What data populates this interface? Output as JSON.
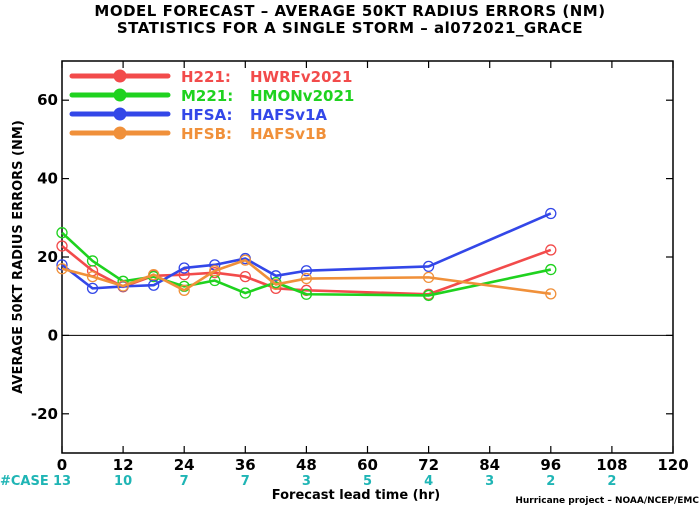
{
  "title_line1": "MODEL FORECAST – AVERAGE 50KT RADIUS ERRORS (NM)",
  "title_line2": "STATISTICS FOR A SINGLE STORM – al072021_GRACE",
  "credit": "Hurricane project – NOAA/NCEP/EMC",
  "case_label": "#CASE",
  "chart_data": {
    "type": "line",
    "xlabel": "Forecast lead time (hr)",
    "ylabel": "AVERAGE 50KT RADIUS ERRORS (NM)",
    "xlim": [
      0,
      120
    ],
    "ylim": [
      -30,
      70
    ],
    "x_ticks": [
      0,
      12,
      24,
      36,
      48,
      60,
      72,
      84,
      96,
      108,
      120
    ],
    "y_ticks": [
      -20,
      0,
      20,
      40,
      60
    ],
    "zero_line": true,
    "legend_position": "top-left",
    "cases": [
      {
        "x": 0,
        "n": "13"
      },
      {
        "x": 12,
        "n": "10"
      },
      {
        "x": 24,
        "n": "7"
      },
      {
        "x": 36,
        "n": "7"
      },
      {
        "x": 48,
        "n": "3"
      },
      {
        "x": 60,
        "n": "5"
      },
      {
        "x": 72,
        "n": "4"
      },
      {
        "x": 84,
        "n": "3"
      },
      {
        "x": 96,
        "n": "2"
      },
      {
        "x": 108,
        "n": "2"
      }
    ],
    "series": [
      {
        "code": "H221:",
        "label": "HWRFv2021",
        "color": "#f24b4b",
        "x": [
          0,
          6,
          12,
          18,
          24,
          30,
          36,
          42,
          48,
          72,
          96
        ],
        "y": [
          22.8,
          16.5,
          12.4,
          15.2,
          15.5,
          16.0,
          15.0,
          12.0,
          11.5,
          10.5,
          21.8
        ]
      },
      {
        "code": "M221:",
        "label": "HMONv2021",
        "color": "#1fd21f",
        "x": [
          0,
          6,
          12,
          18,
          24,
          30,
          36,
          42,
          48,
          72,
          96
        ],
        "y": [
          26.2,
          19.0,
          13.8,
          15.0,
          12.5,
          14.0,
          10.8,
          13.5,
          10.5,
          10.2,
          16.8
        ]
      },
      {
        "code": "HFSA:",
        "label": "HAFSv1A",
        "color": "#3347e8",
        "x": [
          0,
          6,
          12,
          18,
          24,
          30,
          36,
          42,
          48,
          72,
          96
        ],
        "y": [
          18.0,
          12.0,
          12.5,
          12.8,
          17.2,
          18.0,
          19.6,
          15.2,
          16.5,
          17.6,
          31.1
        ]
      },
      {
        "code": "HFSB:",
        "label": "HAFSv1B",
        "color": "#f0903a",
        "x": [
          0,
          6,
          12,
          18,
          24,
          30,
          36,
          42,
          48,
          72,
          96
        ],
        "y": [
          17.0,
          15.0,
          12.6,
          15.5,
          11.5,
          16.5,
          19.2,
          13.0,
          14.5,
          14.8,
          10.6
        ]
      }
    ]
  }
}
